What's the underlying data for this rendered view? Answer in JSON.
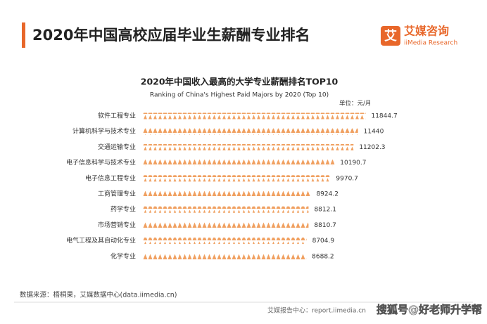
{
  "header": {
    "title": "2020年中国高校应届毕业生薪酬专业排名",
    "logo": "艾媒咨询",
    "logo_sub": "iiMedia Research"
  },
  "chart_data": {
    "type": "bar",
    "orientation": "horizontal",
    "title": "2020年中国收入最高的大学专业薪酬排名TOP10",
    "subtitle": "Ranking of China's Highest Paid Majors by 2020 (Top 10)",
    "unit": "单位：元/月",
    "categories": [
      "软件工程专业",
      "计算机科学与技术专业",
      "交通运输专业",
      "电子信息科学与技术专业",
      "电子信息工程专业",
      "工商管理专业",
      "药学专业",
      "市场营销专业",
      "电气工程及其自动化专业",
      "化学专业"
    ],
    "values": [
      11844.7,
      11440,
      11202.3,
      10190.7,
      9970.7,
      8924.2,
      8812.1,
      8810.7,
      8704.9,
      8688.2
    ],
    "color": "#f0a060",
    "xlim": [
      0,
      12500
    ]
  },
  "footer": {
    "source": "数据来源：梧桐果，艾媒数据中心(data.iimedia.cn)",
    "report": "艾媒报告中心：report.iimedia.cn",
    "watermark": "搜狐号@好老师升学帮"
  }
}
